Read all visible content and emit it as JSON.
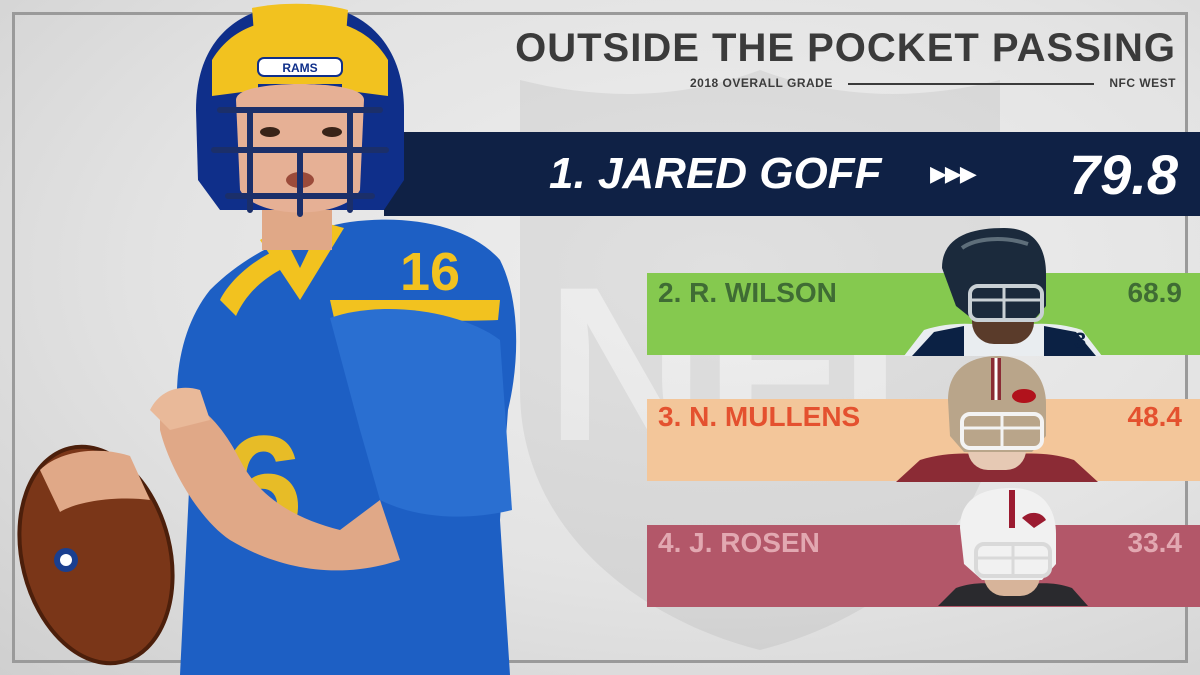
{
  "header": {
    "title": "OUTSIDE THE POCKET PASSING",
    "subtitle_left": "2018 OVERALL GRADE",
    "subtitle_right": "NFC WEST"
  },
  "leader": {
    "label": "1. JARED GOFF",
    "arrows": "▶▶▶",
    "score": "79.8"
  },
  "rankings": [
    {
      "label": "2. R. WILSON",
      "score": "68.9",
      "color": "#85c94f"
    },
    {
      "label": "3. N. MULLENS",
      "score": "48.4",
      "color": "#f3c69a"
    },
    {
      "label": "4. J. ROSEN",
      "score": "33.4",
      "color": "#b35769"
    }
  ],
  "imagery": {
    "main_photo": "rams-quarterback-number-16-with-football",
    "helmet_text": "RAMS",
    "jersey_number": "16",
    "headshot_2": "seahawks-player-headshot",
    "headshot_3": "49ers-player-headshot",
    "headshot_4": "cardinals-player-headshot"
  }
}
